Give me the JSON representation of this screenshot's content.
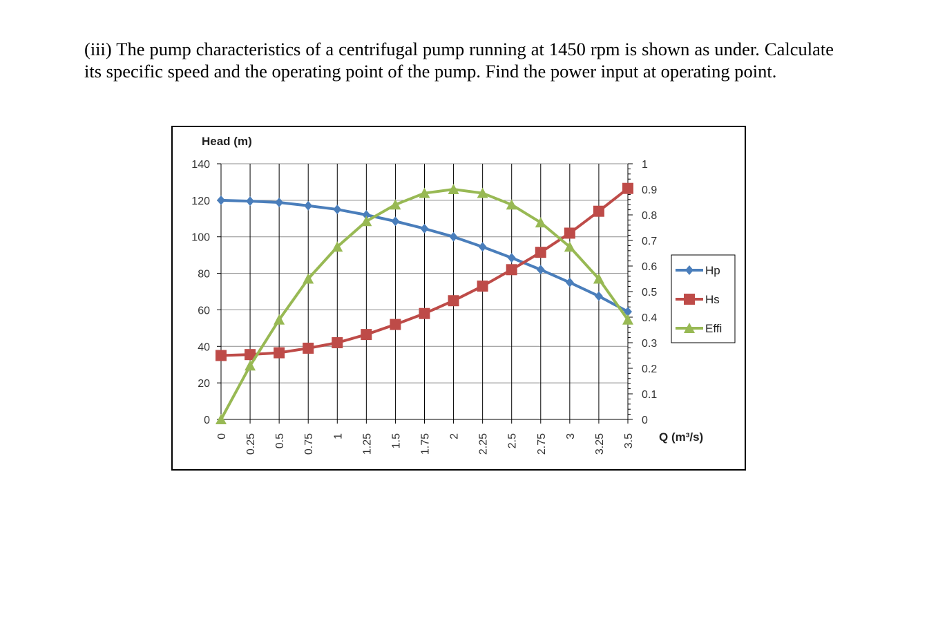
{
  "question": {
    "text": "(iii) The pump characteristics of a centrifugal pump running at 1450 rpm is shown as under. Calculate its specific speed and the operating point of the pump. Find the power input at operating point."
  },
  "chart_data": {
    "type": "line",
    "ylabel": "Head (m)",
    "xlabel": "Q (m³/s)",
    "x": [
      0,
      0.25,
      0.5,
      0.75,
      1,
      1.25,
      1.5,
      1.75,
      2,
      2.25,
      2.5,
      2.75,
      3,
      3.25,
      3.5
    ],
    "x_tick_labels": [
      "0",
      "0.25",
      "0.5",
      "0.75",
      "1",
      "1.25",
      "1.5",
      "1.75",
      "2",
      "2.25",
      "2.5",
      "2.75",
      "3",
      "3.25",
      "3.5"
    ],
    "ylim": [
      0,
      140
    ],
    "y_ticks": [
      "0",
      "20",
      "40",
      "60",
      "80",
      "100",
      "120",
      "140"
    ],
    "y2lim": [
      0,
      1
    ],
    "y2_ticks": [
      "0",
      "0.1",
      "0.2",
      "0.3",
      "0.4",
      "0.5",
      "0.6",
      "0.7",
      "0.8",
      "0.9",
      "1"
    ],
    "grid": true,
    "legend_position": "right",
    "series": [
      {
        "name": "Hp",
        "axis": "left",
        "marker": "diamond",
        "color": "#4a7ebb",
        "values": [
          120,
          119.5,
          118.8,
          117,
          115,
          112,
          108.5,
          104.5,
          100,
          94.5,
          88.5,
          82,
          75,
          67.5,
          59
        ]
      },
      {
        "name": "Hs",
        "axis": "left",
        "marker": "square",
        "color": "#be4b48",
        "values": [
          35,
          35.5,
          36.5,
          39,
          42,
          46.5,
          52,
          58,
          65,
          73,
          82,
          91.5,
          102,
          114,
          126.5
        ]
      },
      {
        "name": "Effi",
        "axis": "right",
        "marker": "triangle",
        "color": "#98b954",
        "values": [
          0,
          0.21,
          0.39,
          0.55,
          0.675,
          0.775,
          0.84,
          0.885,
          0.9,
          0.885,
          0.84,
          0.77,
          0.675,
          0.55,
          0.39
        ]
      }
    ]
  }
}
